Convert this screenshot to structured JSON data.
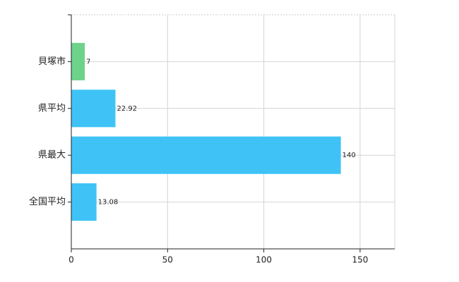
{
  "chart_data": {
    "type": "barh",
    "categories": [
      "貝塚市",
      "県平均",
      "県最大",
      "全国平均"
    ],
    "values": [
      7,
      22.92,
      140,
      13.08
    ],
    "colors": [
      "#6ed38a",
      "#3fc3f6",
      "#3fc3f6",
      "#3fc3f6"
    ],
    "xlim": [
      0,
      168
    ],
    "xticks": [
      0,
      50,
      100,
      150
    ],
    "grid": true
  }
}
